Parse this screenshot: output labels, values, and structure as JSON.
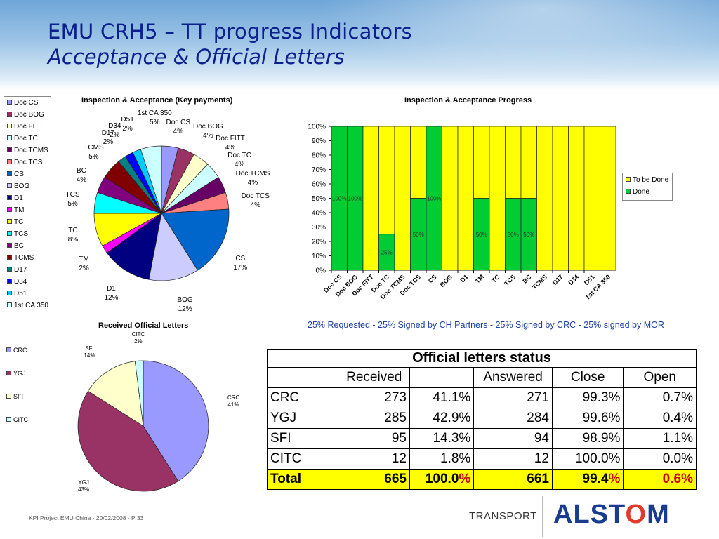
{
  "header": {
    "title": "EMU CRH5 – TT progress Indicators",
    "subtitle": "Acceptance & Official Letters"
  },
  "colors": {
    "done": "#00cc33",
    "to_be_done": "#ffff00",
    "title_blue": "#0c1f8c",
    "note_blue": "#1d3fa6"
  },
  "note": "25% Requested - 25% Signed by CH Partners - 25% Signed by CRC - 25% signed by MOR",
  "footer": {
    "left": "KPI Project EMU China - 20/02/2008 - P 33",
    "transport": "TRANSPORT",
    "brand_a": "ALST",
    "brand_o": "O",
    "brand_m": "M"
  },
  "table": {
    "caption": "Official letters status",
    "headers": [
      "",
      "Received",
      "",
      "Answered",
      "Close",
      "Open"
    ],
    "rows": [
      [
        "CRC",
        "273",
        "41.1%",
        "271",
        "99.3%",
        "0.7%"
      ],
      [
        "YGJ",
        "285",
        "42.9%",
        "284",
        "99.6%",
        "0.4%"
      ],
      [
        "SFI",
        "95",
        "14.3%",
        "94",
        "98.9%",
        "1.1%"
      ],
      [
        "CITC",
        "12",
        "1.8%",
        "12",
        "100.0%",
        "0.0%"
      ]
    ],
    "total": [
      "Total",
      "665",
      "100.0%",
      "661",
      "99.4%",
      "0.6%"
    ]
  },
  "chart_data": [
    {
      "type": "pie",
      "title": "Inspection & Acceptance (Key payments)",
      "legend_position": "left",
      "slices": [
        {
          "label": "Doc CS",
          "value": 4,
          "pct": "4%",
          "color": "#9999ff"
        },
        {
          "label": "Doc BOG",
          "value": 4,
          "pct": "4%",
          "color": "#993366"
        },
        {
          "label": "Doc FITT",
          "value": 4,
          "pct": "4%",
          "color": "#ffffcc"
        },
        {
          "label": "Doc TC",
          "value": 4,
          "pct": "4%",
          "color": "#ccffff"
        },
        {
          "label": "Doc TCMS",
          "value": 4,
          "pct": "4%",
          "color": "#660066"
        },
        {
          "label": "Doc TCS",
          "value": 4,
          "pct": "4%",
          "color": "#ff8080"
        },
        {
          "label": "CS",
          "value": 17,
          "pct": "17%",
          "color": "#0066cc"
        },
        {
          "label": "BOG",
          "value": 12,
          "pct": "12%",
          "color": "#ccccff"
        },
        {
          "label": "D1",
          "value": 12,
          "pct": "12%",
          "color": "#000080"
        },
        {
          "label": "TM",
          "value": 2,
          "pct": "2%",
          "color": "#ff00ff"
        },
        {
          "label": "TC",
          "value": 8,
          "pct": "8%",
          "color": "#ffff00"
        },
        {
          "label": "TCS",
          "value": 5,
          "pct": "5%",
          "color": "#00ffff"
        },
        {
          "label": "BC",
          "value": 4,
          "pct": "4%",
          "color": "#800080"
        },
        {
          "label": "TCMS",
          "value": 5,
          "pct": "5%",
          "color": "#800000"
        },
        {
          "label": "D17",
          "value": 2,
          "pct": "2%",
          "color": "#008080"
        },
        {
          "label": "D34",
          "value": 2,
          "pct": "2%",
          "color": "#0000ff"
        },
        {
          "label": "D51",
          "value": 2,
          "pct": "2%",
          "color": "#00ccff"
        },
        {
          "label": "1st CA 350",
          "value": 5,
          "pct": "5%",
          "color": "#ccffff"
        }
      ]
    },
    {
      "type": "bar",
      "stacked": true,
      "title": "Inspection & Acceptance Progress",
      "legend_position": "right",
      "categories": [
        "Doc CS",
        "Doc BOG",
        "Doc FITT",
        "Doc TC",
        "Doc TCMS",
        "Doc TCS",
        "CS",
        "BOG",
        "D1",
        "TM",
        "TC",
        "TCS",
        "BC",
        "TCMS",
        "D17",
        "D34",
        "D51",
        "1st CA 350"
      ],
      "ylim": [
        0,
        100
      ],
      "yticks": [
        "0%",
        "10%",
        "20%",
        "30%",
        "40%",
        "50%",
        "60%",
        "70%",
        "80%",
        "90%",
        "100%"
      ],
      "grid": false,
      "series": [
        {
          "name": "Done",
          "values": [
            100,
            100,
            0,
            25,
            0,
            50,
            100,
            0,
            0,
            50,
            0,
            50,
            50,
            0,
            0,
            0,
            0,
            0
          ],
          "labels": [
            "100%",
            "100%",
            "",
            "25%",
            "",
            "50%",
            "100%",
            "",
            "",
            "50%",
            "",
            "50%",
            "50%",
            "",
            "",
            "",
            "",
            ""
          ]
        },
        {
          "name": "To be Done",
          "values": [
            0,
            0,
            100,
            75,
            100,
            50,
            0,
            100,
            100,
            50,
            100,
            50,
            50,
            100,
            100,
            100,
            100,
            100
          ]
        }
      ]
    },
    {
      "type": "pie",
      "title": "Received Official Letters",
      "legend_position": "left",
      "slices": [
        {
          "label": "CRC",
          "value": 41,
          "pct": "41%",
          "color": "#9999ff"
        },
        {
          "label": "YGJ",
          "value": 43,
          "pct": "43%",
          "color": "#993366"
        },
        {
          "label": "SFI",
          "value": 14,
          "pct": "14%",
          "color": "#ffffcc"
        },
        {
          "label": "CITC",
          "value": 2,
          "pct": "2%",
          "color": "#ccffff"
        }
      ]
    }
  ]
}
